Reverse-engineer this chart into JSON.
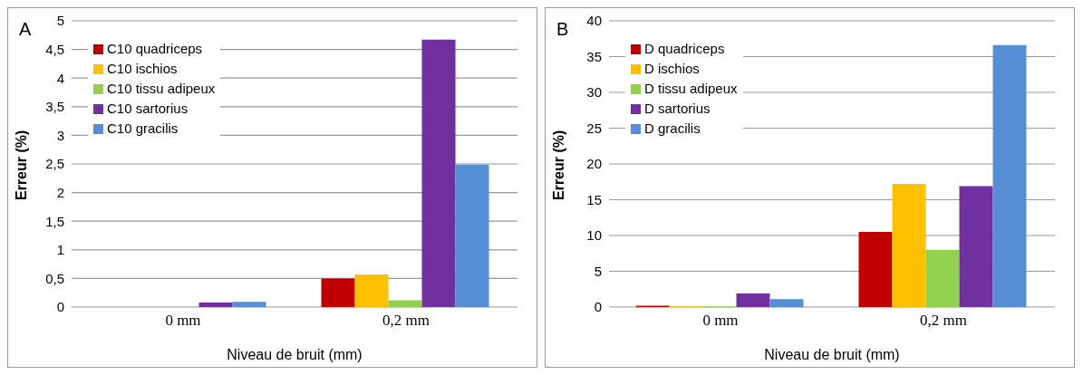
{
  "chart_data": [
    {
      "type": "bar",
      "title": "A",
      "xlabel": "Niveau de bruit (mm)",
      "ylabel": "Erreur (%)",
      "categories": [
        "0 mm",
        "0,2 mm"
      ],
      "series": [
        {
          "name": "C10 quadriceps",
          "color": "#c00000",
          "values": [
            0,
            0.5
          ]
        },
        {
          "name": "C10 ischios",
          "color": "#ffc000",
          "values": [
            0,
            0.57
          ]
        },
        {
          "name": "C10 tissu adipeux",
          "color": "#92d050",
          "values": [
            0,
            0.12
          ]
        },
        {
          "name": "C10 sartorius",
          "color": "#7030a0",
          "values": [
            0.08,
            4.67
          ]
        },
        {
          "name": "C10 gracilis",
          "color": "#558ed5",
          "values": [
            0.09,
            2.49
          ]
        }
      ],
      "ylim": [
        0,
        5
      ],
      "yticks": [
        0,
        {
          "value": 0.5,
          "label": "0,5"
        },
        1,
        {
          "value": 1.5,
          "label": "1,5"
        },
        2,
        {
          "value": 2.5,
          "label": "2,5"
        },
        3,
        {
          "value": 3.5,
          "label": "3,5"
        },
        4,
        {
          "value": 4.5,
          "label": "4,5"
        },
        5
      ],
      "grid": "y",
      "legend": "top left"
    },
    {
      "type": "bar",
      "title": "B",
      "xlabel": "Niveau de bruit (mm)",
      "ylabel": "Erreur (%)",
      "categories": [
        "0 mm",
        "0,2 mm"
      ],
      "series": [
        {
          "name": "D quadriceps",
          "color": "#c00000",
          "values": [
            0.2,
            10.5
          ]
        },
        {
          "name": "D ischios",
          "color": "#ffc000",
          "values": [
            0.1,
            17.2
          ]
        },
        {
          "name": "D tissu adipeux",
          "color": "#92d050",
          "values": [
            0.1,
            8.0
          ]
        },
        {
          "name": "D sartorius",
          "color": "#7030a0",
          "values": [
            1.9,
            16.9
          ]
        },
        {
          "name": "D gracilis",
          "color": "#558ed5",
          "values": [
            1.1,
            36.6
          ]
        }
      ],
      "ylim": [
        0,
        40
      ],
      "yticks": [
        0,
        5,
        10,
        15,
        20,
        25,
        30,
        35,
        40
      ],
      "grid": "y",
      "legend": "top left"
    }
  ]
}
